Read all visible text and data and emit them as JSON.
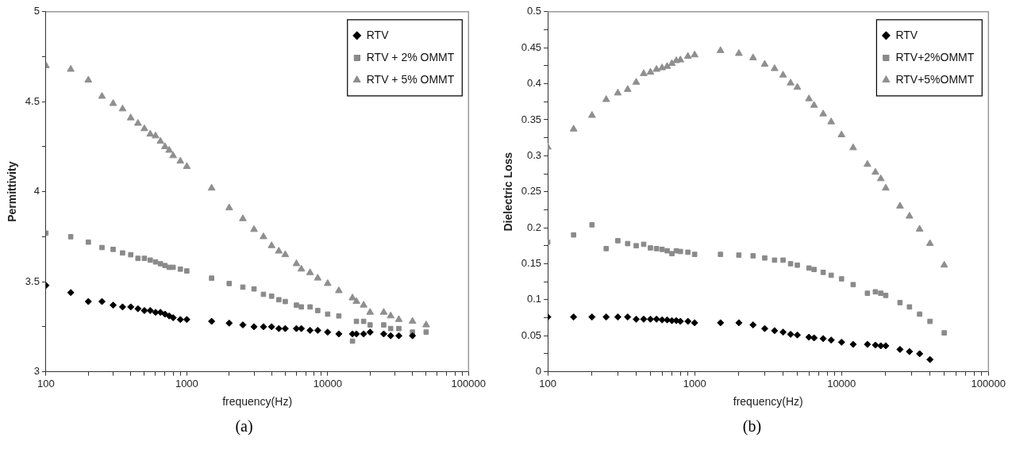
{
  "chart_data": [
    {
      "type": "scatter",
      "xlabel": "frequency(Hz)",
      "ylabel": "Permittivity",
      "annotations": [
        "(a)"
      ],
      "log": "x",
      "legend": "top right",
      "x": [
        100,
        150,
        200,
        250,
        300,
        350,
        400,
        450,
        500,
        550,
        600,
        650,
        700,
        750,
        800,
        900,
        1000,
        1500,
        2000,
        2500,
        3000,
        3500,
        4000,
        4500,
        5000,
        6000,
        6500,
        7500,
        8500,
        10000,
        12000,
        15000,
        16000,
        18000,
        20000,
        25000,
        28000,
        32000,
        40000,
        50000
      ],
      "xlim": [
        100,
        100000
      ],
      "xticks": [
        100,
        {
          "value": 200,
          "label": null
        },
        {
          "value": 300,
          "label": null
        },
        {
          "value": 400,
          "label": null
        },
        {
          "value": 500,
          "label": null
        },
        {
          "value": 600,
          "label": null
        },
        {
          "value": 700,
          "label": null
        },
        {
          "value": 800,
          "label": null
        },
        {
          "value": 900,
          "label": null
        },
        1000,
        {
          "value": 2000,
          "label": null
        },
        {
          "value": 3000,
          "label": null
        },
        {
          "value": 4000,
          "label": null
        },
        {
          "value": 5000,
          "label": null
        },
        {
          "value": 6000,
          "label": null
        },
        {
          "value": 7000,
          "label": null
        },
        {
          "value": 8000,
          "label": null
        },
        {
          "value": 9000,
          "label": null
        },
        10000,
        {
          "value": 20000,
          "label": null
        },
        {
          "value": 30000,
          "label": null
        },
        {
          "value": 40000,
          "label": null
        },
        {
          "value": 50000,
          "label": null
        },
        {
          "value": 60000,
          "label": null
        },
        {
          "value": 70000,
          "label": null
        },
        {
          "value": 80000,
          "label": null
        },
        {
          "value": 90000,
          "label": null
        },
        100000
      ],
      "ylim": [
        3,
        5
      ],
      "yticks": [
        3,
        {
          "value": 3.25,
          "label": null
        },
        3.5,
        {
          "value": 3.75,
          "label": null
        },
        4,
        {
          "value": 4.25,
          "label": null
        },
        4.5,
        {
          "value": 4.75,
          "label": null
        },
        5
      ],
      "series": [
        {
          "name": "RTV",
          "color": "#000000",
          "marker": "diamond",
          "values": [
            3.48,
            3.44,
            3.39,
            3.39,
            3.37,
            3.36,
            3.36,
            3.35,
            3.34,
            3.34,
            3.33,
            3.33,
            3.32,
            3.31,
            3.3,
            3.29,
            3.29,
            3.28,
            3.27,
            3.26,
            3.25,
            3.25,
            3.25,
            3.24,
            3.24,
            3.24,
            3.24,
            3.23,
            3.23,
            3.22,
            3.21,
            3.21,
            3.21,
            3.21,
            3.22,
            3.21,
            3.2,
            3.2,
            3.2,
            null
          ]
        },
        {
          "name": "RTV + 2% OMMT",
          "color": "#8a8a8a",
          "marker": "square",
          "values": [
            3.77,
            3.75,
            3.72,
            3.69,
            3.68,
            3.66,
            3.65,
            3.63,
            3.63,
            3.62,
            3.61,
            3.6,
            3.59,
            3.58,
            3.58,
            3.57,
            3.56,
            3.52,
            3.49,
            3.47,
            3.46,
            3.43,
            3.42,
            3.4,
            3.39,
            3.37,
            3.36,
            3.36,
            3.34,
            3.32,
            3.31,
            3.17,
            3.28,
            3.28,
            3.26,
            3.26,
            3.24,
            3.24,
            3.22,
            3.22
          ]
        },
        {
          "name": "RTV + 5% OMMT",
          "color": "#8f8f8f",
          "marker": "triangle",
          "values": [
            4.7,
            4.68,
            4.62,
            4.53,
            4.49,
            4.46,
            4.41,
            4.38,
            4.35,
            4.32,
            4.31,
            4.28,
            4.25,
            4.23,
            4.2,
            4.17,
            4.14,
            4.02,
            3.91,
            3.85,
            3.79,
            3.75,
            3.7,
            3.67,
            3.65,
            3.6,
            3.57,
            3.55,
            3.52,
            3.49,
            3.45,
            3.41,
            3.39,
            3.37,
            3.33,
            3.33,
            3.31,
            3.29,
            3.28,
            3.26
          ]
        }
      ]
    },
    {
      "type": "scatter",
      "xlabel": "frequency(Hz)",
      "ylabel": "Dielectric Loss",
      "annotations": [
        "(b)"
      ],
      "log": "x",
      "legend": "top right",
      "x": [
        100,
        150,
        200,
        250,
        300,
        350,
        400,
        450,
        500,
        550,
        600,
        650,
        700,
        750,
        800,
        900,
        1000,
        1500,
        2000,
        2500,
        3000,
        3500,
        4000,
        4500,
        5000,
        6000,
        6500,
        7500,
        8500,
        10000,
        12000,
        15000,
        17000,
        18500,
        20000,
        25000,
        29000,
        34000,
        40000,
        50000
      ],
      "xlim": [
        100,
        100000
      ],
      "xticks": [
        100,
        {
          "value": 200,
          "label": null
        },
        {
          "value": 300,
          "label": null
        },
        {
          "value": 400,
          "label": null
        },
        {
          "value": 500,
          "label": null
        },
        {
          "value": 600,
          "label": null
        },
        {
          "value": 700,
          "label": null
        },
        {
          "value": 800,
          "label": null
        },
        {
          "value": 900,
          "label": null
        },
        1000,
        {
          "value": 2000,
          "label": null
        },
        {
          "value": 3000,
          "label": null
        },
        {
          "value": 4000,
          "label": null
        },
        {
          "value": 5000,
          "label": null
        },
        {
          "value": 6000,
          "label": null
        },
        {
          "value": 7000,
          "label": null
        },
        {
          "value": 8000,
          "label": null
        },
        {
          "value": 9000,
          "label": null
        },
        10000,
        {
          "value": 20000,
          "label": null
        },
        {
          "value": 30000,
          "label": null
        },
        {
          "value": 40000,
          "label": null
        },
        {
          "value": 50000,
          "label": null
        },
        {
          "value": 60000,
          "label": null
        },
        {
          "value": 70000,
          "label": null
        },
        {
          "value": 80000,
          "label": null
        },
        {
          "value": 90000,
          "label": null
        },
        100000
      ],
      "ylim": [
        0,
        0.5
      ],
      "yticks": [
        0,
        {
          "value": 0.025,
          "label": null
        },
        0.05,
        {
          "value": 0.075,
          "label": null
        },
        0.1,
        {
          "value": 0.125,
          "label": null
        },
        0.15,
        {
          "value": 0.175,
          "label": null
        },
        0.2,
        {
          "value": 0.225,
          "label": null
        },
        0.25,
        {
          "value": 0.275,
          "label": null
        },
        0.3,
        {
          "value": 0.325,
          "label": null
        },
        0.35,
        {
          "value": 0.375,
          "label": null
        },
        0.4,
        {
          "value": 0.425,
          "label": null
        },
        0.45,
        {
          "value": 0.475,
          "label": null
        },
        0.5
      ],
      "series": [
        {
          "name": "RTV",
          "color": "#000000",
          "marker": "diamond",
          "values": [
            0.076,
            0.076,
            0.076,
            0.076,
            0.076,
            0.076,
            0.073,
            0.073,
            0.073,
            0.073,
            0.072,
            0.072,
            0.071,
            0.071,
            0.07,
            0.07,
            0.068,
            0.068,
            0.068,
            0.065,
            0.06,
            0.057,
            0.055,
            0.052,
            0.051,
            0.048,
            0.047,
            0.046,
            0.044,
            0.041,
            0.038,
            0.038,
            0.037,
            0.036,
            0.036,
            0.031,
            0.028,
            0.025,
            0.017,
            null
          ]
        },
        {
          "name": "RTV+2%OMMT",
          "color": "#8a8a8a",
          "marker": "square",
          "values": [
            0.18,
            0.19,
            0.204,
            0.171,
            0.182,
            0.178,
            0.175,
            0.177,
            0.172,
            0.171,
            0.17,
            0.168,
            0.164,
            0.168,
            0.167,
            0.166,
            0.163,
            0.163,
            0.162,
            0.161,
            0.158,
            0.155,
            0.155,
            0.15,
            0.148,
            0.144,
            0.142,
            0.138,
            0.134,
            0.129,
            0.121,
            0.109,
            0.111,
            0.109,
            0.106,
            0.096,
            0.09,
            0.08,
            0.07,
            0.054
          ]
        },
        {
          "name": "RTV+5%OMMT",
          "color": "#8f8f8f",
          "marker": "triangle",
          "values": [
            0.312,
            0.337,
            0.356,
            0.378,
            0.387,
            0.392,
            0.402,
            0.414,
            0.416,
            0.42,
            0.422,
            0.424,
            0.428,
            0.432,
            0.433,
            0.438,
            0.44,
            0.446,
            0.442,
            0.436,
            0.427,
            0.421,
            0.412,
            0.401,
            0.395,
            0.379,
            0.37,
            0.358,
            0.347,
            0.329,
            0.311,
            0.288,
            0.277,
            0.268,
            0.255,
            0.23,
            0.216,
            0.198,
            0.178,
            0.148
          ]
        }
      ]
    }
  ]
}
